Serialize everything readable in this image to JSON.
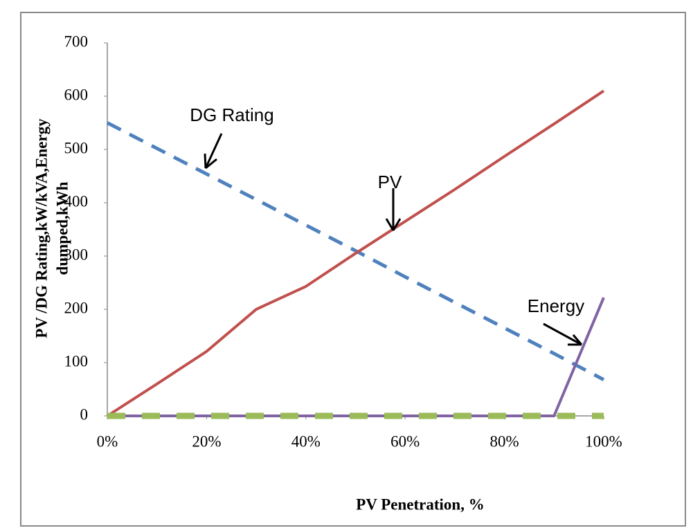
{
  "chart_data": {
    "type": "line",
    "ylabel": [
      "PV /DG Rating,kW/kVA,Energy",
      "dumped,kWh"
    ],
    "xlabel": "PV Penetration, %",
    "x": [
      0,
      10,
      20,
      30,
      40,
      50,
      60,
      70,
      80,
      90,
      100
    ],
    "series": [
      {
        "name": "DG Rating",
        "color": "#4f81bd",
        "dashed": true,
        "values": [
          550,
          502,
          454,
          406,
          358,
          310,
          261,
          213,
          165,
          117,
          68
        ]
      },
      {
        "name": "PV",
        "color": "#c0504d",
        "dashed": false,
        "values": [
          0,
          60,
          121,
          200,
          243,
          305,
          365,
          425,
          487,
          548,
          610
        ]
      },
      {
        "name": "Energy",
        "color": "#8064a2",
        "dashed": false,
        "values": [
          0,
          0,
          0,
          0,
          0,
          0,
          0,
          0,
          0,
          0,
          222
        ]
      },
      {
        "color": "#9bbb59",
        "dashed": true,
        "values": [
          0,
          0,
          0,
          0,
          0,
          0,
          0,
          0,
          0,
          0,
          0
        ]
      }
    ],
    "xlim": [
      0,
      100
    ],
    "xticks": [
      {
        "value": 0,
        "label": "0%"
      },
      {
        "value": 20,
        "label": "20%"
      },
      {
        "value": 40,
        "label": "40%"
      },
      {
        "value": 60,
        "label": "60%"
      },
      {
        "value": 80,
        "label": "80%"
      },
      {
        "value": 100,
        "label": "100%"
      }
    ],
    "ylim": [
      0,
      700
    ],
    "yticks": [
      0,
      100,
      200,
      300,
      400,
      500,
      600,
      700
    ],
    "grid": false
  }
}
